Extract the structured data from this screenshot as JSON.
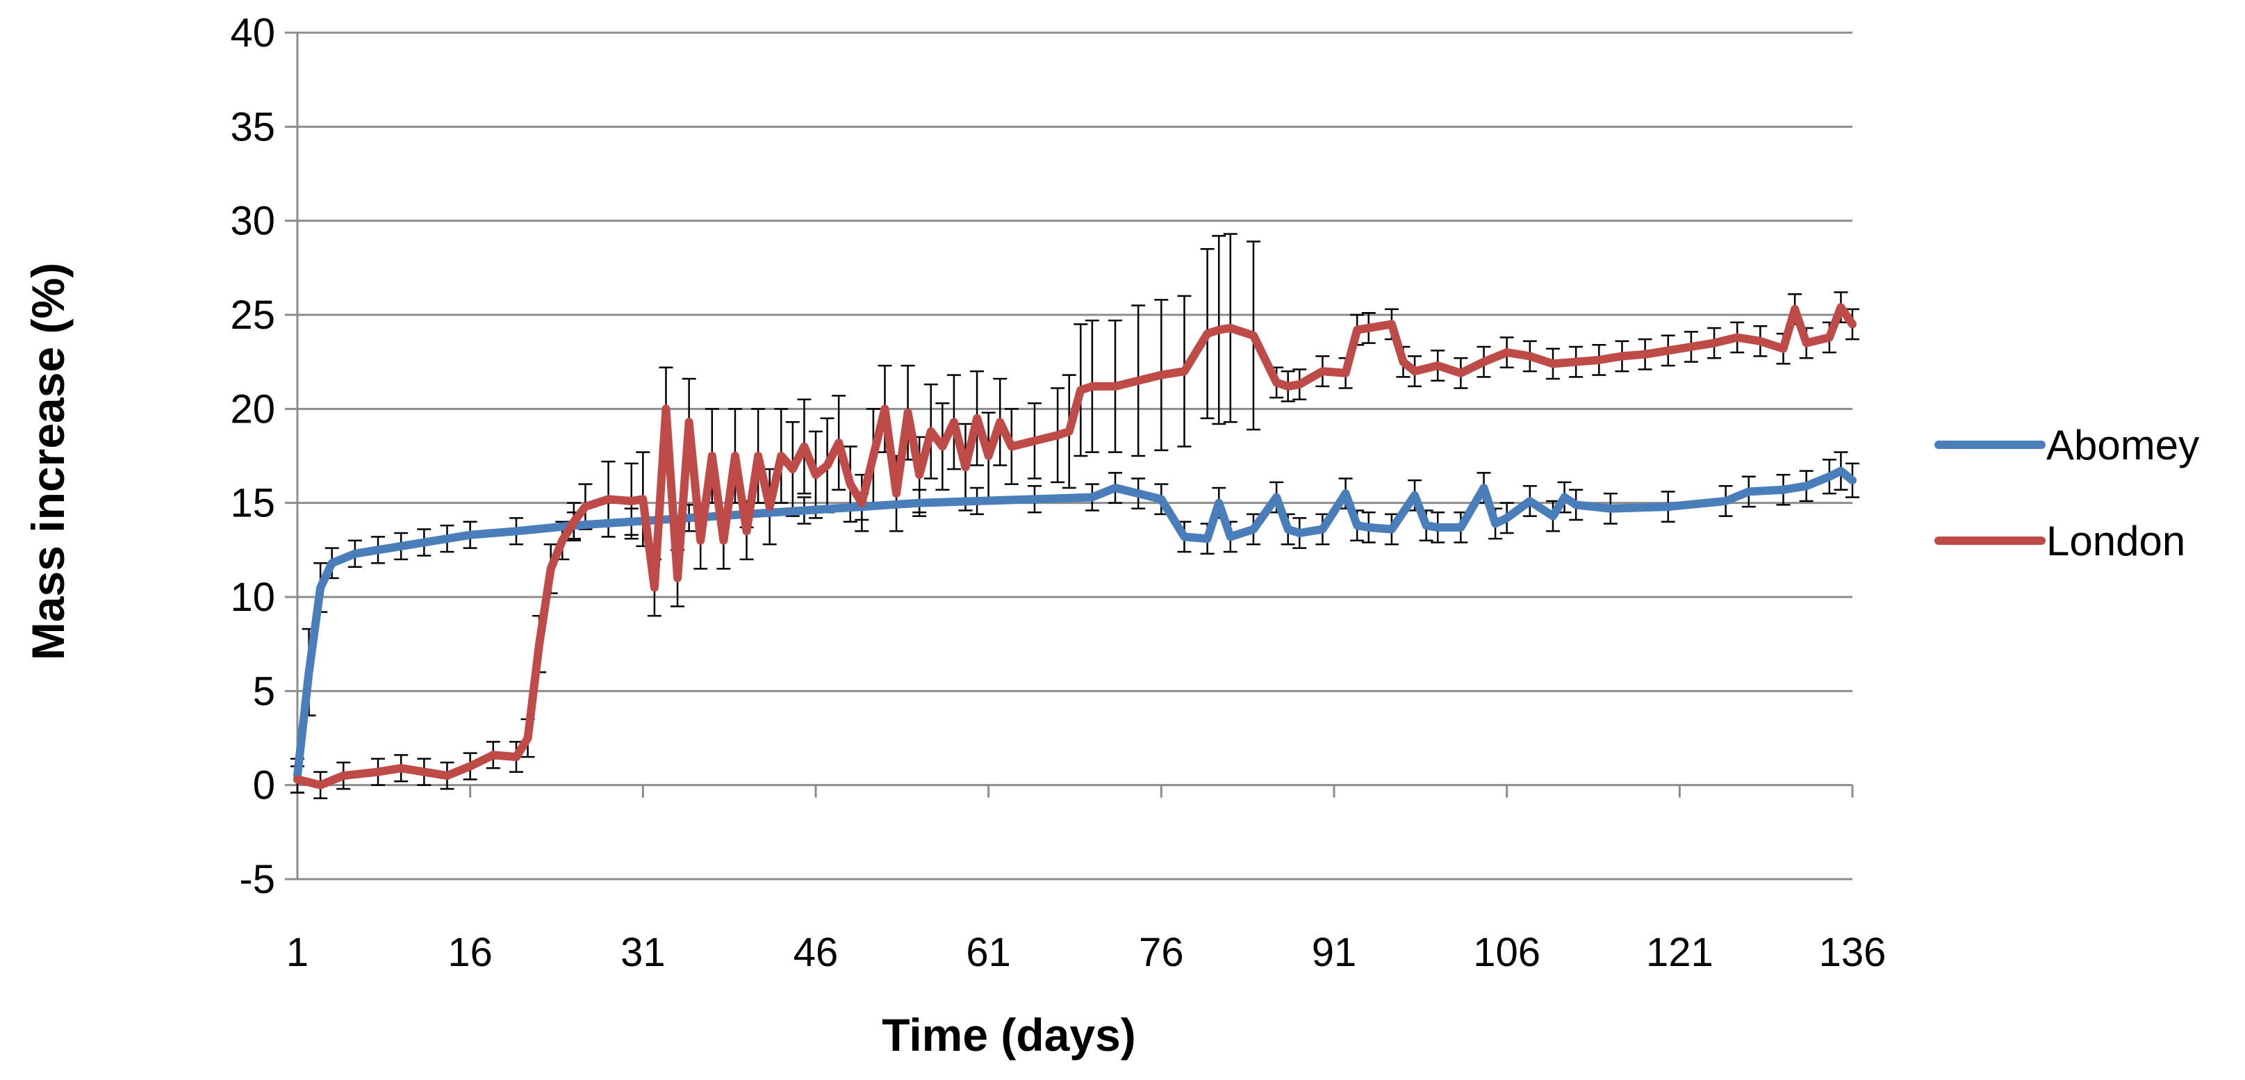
{
  "chart_data": {
    "type": "line",
    "title": "",
    "xlabel": "Time (days)",
    "ylabel": "Mass increase (%)",
    "xlim": [
      1,
      136
    ],
    "ylim": [
      -5,
      40
    ],
    "x_ticks": [
      1,
      16,
      31,
      46,
      61,
      76,
      91,
      106,
      121,
      136
    ],
    "y_ticks": [
      -5,
      0,
      5,
      10,
      15,
      20,
      25,
      30,
      35,
      40
    ],
    "x_tick_labels": [
      "1",
      "16",
      "31",
      "46",
      "61",
      "76",
      "91",
      "106",
      "121",
      "136"
    ],
    "y_tick_labels": [
      "-5",
      "0",
      "5",
      "10",
      "15",
      "20",
      "25",
      "30",
      "35",
      "40"
    ],
    "grid": true,
    "legend_position": "right",
    "series": [
      {
        "name": "Abomey",
        "color": "#4a7ebb",
        "x": [
          1,
          2,
          3,
          4,
          6,
          8,
          10,
          12,
          14,
          16,
          20,
          25,
          30,
          35,
          40,
          45,
          50,
          55,
          60,
          65,
          70,
          72,
          74,
          76,
          78,
          80,
          81,
          82,
          84,
          86,
          87,
          88,
          90,
          92,
          93,
          94,
          96,
          98,
          99,
          100,
          102,
          104,
          105,
          106,
          108,
          110,
          111,
          112,
          115,
          120,
          125,
          127,
          130,
          132,
          134,
          135,
          136
        ],
        "values": [
          0.5,
          6,
          10.5,
          11.8,
          12.3,
          12.5,
          12.7,
          12.9,
          13.1,
          13.3,
          13.5,
          13.8,
          14,
          14.2,
          14.4,
          14.6,
          14.8,
          15,
          15.1,
          15.2,
          15.3,
          15.8,
          15.5,
          15.2,
          13.2,
          13.1,
          15,
          13.2,
          13.6,
          15.3,
          13.6,
          13.4,
          13.6,
          15.5,
          13.8,
          13.7,
          13.6,
          15.4,
          13.8,
          13.7,
          13.7,
          15.8,
          13.9,
          14.2,
          15.1,
          14.3,
          15.3,
          14.9,
          14.7,
          14.8,
          15.1,
          15.6,
          15.7,
          15.9,
          16.4,
          16.7,
          16.2
        ],
        "error": [
          0.9,
          2.3,
          1.3,
          0.8,
          0.7,
          0.7,
          0.7,
          0.7,
          0.7,
          0.7,
          0.7,
          0.7,
          0.7,
          0.7,
          0.7,
          0.7,
          0.7,
          0.7,
          0.7,
          0.7,
          0.7,
          0.8,
          0.8,
          0.8,
          0.8,
          0.8,
          0.8,
          0.8,
          0.8,
          0.8,
          0.8,
          0.8,
          0.8,
          0.8,
          0.8,
          0.8,
          0.8,
          0.8,
          0.8,
          0.8,
          0.8,
          0.8,
          0.8,
          0.8,
          0.8,
          0.8,
          0.8,
          0.8,
          0.8,
          0.8,
          0.8,
          0.8,
          0.8,
          0.8,
          0.9,
          1,
          0.9
        ]
      },
      {
        "name": "London",
        "color": "#be4b48",
        "x": [
          1,
          3,
          5,
          8,
          10,
          12,
          14,
          16,
          18,
          20,
          21,
          22,
          23,
          24,
          25,
          26,
          28,
          30,
          31,
          32,
          33,
          34,
          35,
          36,
          37,
          38,
          39,
          40,
          41,
          42,
          43,
          44,
          45,
          46,
          47,
          48,
          49,
          50,
          51,
          52,
          53,
          54,
          55,
          56,
          57,
          58,
          59,
          60,
          61,
          62,
          63,
          65,
          67,
          68,
          69,
          70,
          72,
          74,
          76,
          78,
          80,
          81,
          82,
          84,
          86,
          87,
          88,
          90,
          92,
          93,
          94,
          96,
          97,
          98,
          100,
          102,
          104,
          106,
          108,
          110,
          112,
          114,
          116,
          118,
          120,
          122,
          124,
          126,
          128,
          130,
          131,
          132,
          134,
          135,
          136
        ],
        "values": [
          0.3,
          0,
          0.5,
          0.7,
          0.9,
          0.7,
          0.5,
          1,
          1.6,
          1.5,
          2.5,
          7.5,
          11.5,
          13,
          14,
          14.8,
          15.2,
          15.1,
          15.2,
          10.5,
          20,
          11,
          19.3,
          13,
          17.5,
          13,
          17.5,
          13.5,
          17.5,
          14.8,
          17.5,
          16.8,
          18,
          16.5,
          17,
          18.2,
          16,
          15,
          17.5,
          20,
          15.5,
          19.8,
          16.5,
          18.8,
          18,
          19.3,
          16.9,
          19.5,
          17.5,
          19.3,
          18,
          18.3,
          18.6,
          18.8,
          21,
          21.2,
          21.2,
          21.5,
          21.8,
          22,
          24,
          24.2,
          24.3,
          23.9,
          21.4,
          21.2,
          21.3,
          22,
          21.9,
          24.2,
          24.3,
          24.5,
          22.5,
          22,
          22.3,
          21.9,
          22.5,
          23,
          22.8,
          22.4,
          22.5,
          22.6,
          22.8,
          22.9,
          23.1,
          23.3,
          23.5,
          23.8,
          23.6,
          23.2,
          25.3,
          23.5,
          23.8,
          25.4,
          24.5
        ],
        "error": [
          0.7,
          0.7,
          0.7,
          0.7,
          0.7,
          0.7,
          0.7,
          0.7,
          0.7,
          0.8,
          1,
          1.5,
          1.3,
          1,
          1,
          1.2,
          2,
          2,
          2.5,
          1.5,
          2.2,
          1.5,
          2.3,
          1.5,
          2.5,
          1.5,
          2.5,
          1.5,
          2.5,
          2,
          2.5,
          2.5,
          2.5,
          2.3,
          2.5,
          2.5,
          2,
          1.5,
          2.5,
          2.3,
          2,
          2.5,
          2,
          2.5,
          2.3,
          2.5,
          2.3,
          2.5,
          2.3,
          2.3,
          2,
          2,
          2.5,
          3,
          3.5,
          3.5,
          3.5,
          4,
          4,
          4,
          4.5,
          5,
          5,
          5,
          0.8,
          0.8,
          0.8,
          0.8,
          0.8,
          0.8,
          0.8,
          0.8,
          0.8,
          0.8,
          0.8,
          0.8,
          0.8,
          0.8,
          0.8,
          0.8,
          0.8,
          0.8,
          0.8,
          0.8,
          0.8,
          0.8,
          0.8,
          0.8,
          0.8,
          0.8,
          0.8,
          0.8,
          0.8,
          0.8,
          0.8
        ]
      }
    ]
  }
}
